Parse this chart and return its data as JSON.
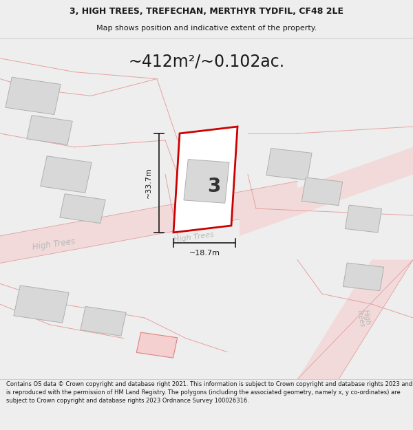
{
  "title_line1": "3, HIGH TREES, TREFECHAN, MERTHYR TYDFIL, CF48 2LE",
  "title_line2": "Map shows position and indicative extent of the property.",
  "area_text": "~412m²/~0.102ac.",
  "label_number": "3",
  "dim_vertical": "~33.7m",
  "dim_horizontal": "~18.7m",
  "footer_text": "Contains OS data © Crown copyright and database right 2021. This information is subject to Crown copyright and database rights 2023 and is reproduced with the permission of HM Land Registry. The polygons (including the associated geometry, namely x, y co-ordinates) are subject to Crown copyright and database rights 2023 Ordnance Survey 100026316.",
  "bg_color": "#f0f0f0",
  "map_bg": "#f7f7f7",
  "property_color": "#cc0000",
  "building_color": "#d8d8d8",
  "building_edge": "#b0b0b0",
  "road_fill": "#f2dada",
  "road_line": "#e0a0a0",
  "boundary_color": "#e8a0a0",
  "dim_color": "#1a1a1a",
  "title_color": "#1a1a1a",
  "footer_color": "#1a1a1a",
  "street_color": "#b8b8b8",
  "header_footer_bg": "#eeeeee"
}
